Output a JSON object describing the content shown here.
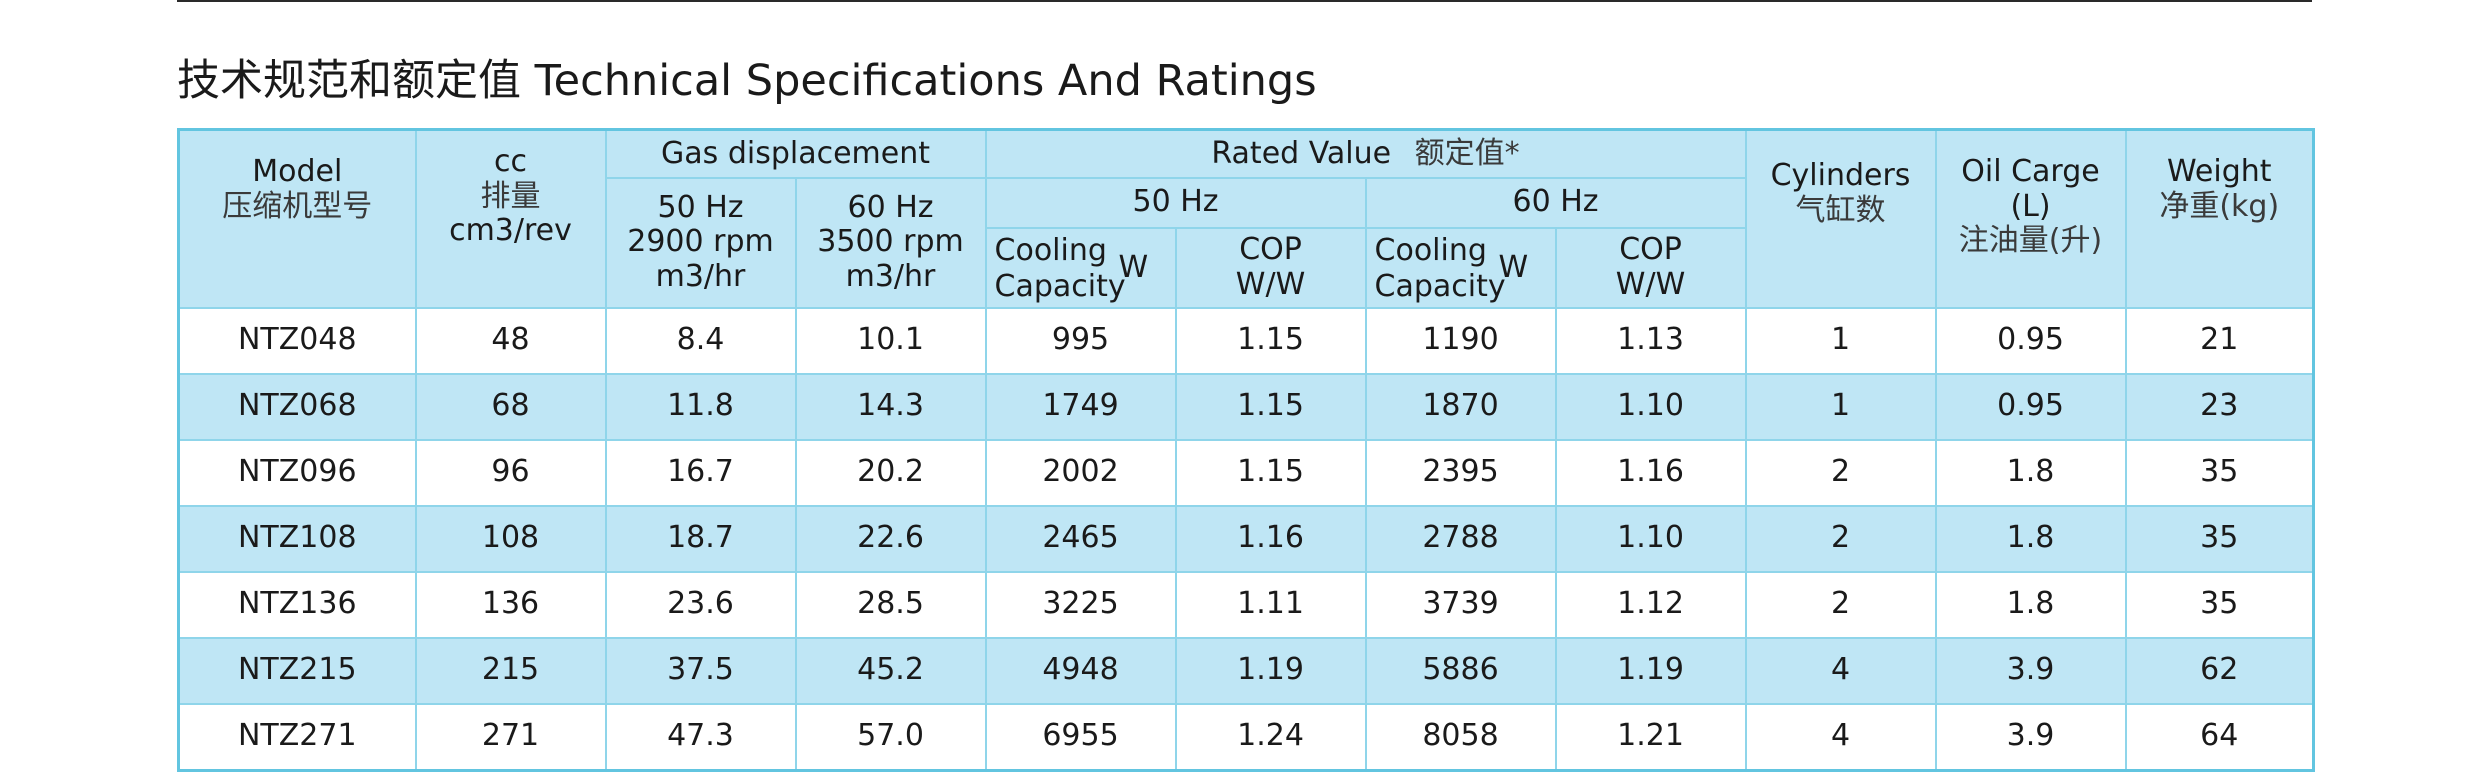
{
  "title": "技术规范和额定值 Technical Specifications And Ratings",
  "header": {
    "model_en": "Model",
    "model_zh": "压缩机型号",
    "cc_en": "cc",
    "cc_zh": "排量",
    "cc_unit": "cm3/rev",
    "gas_displacement": "Gas displacement",
    "rated_value_en": "Rated Value",
    "rated_value_zh": "额定值*",
    "hz50": "50 Hz",
    "hz60": "60 Hz",
    "rpm2900": "2900 rpm",
    "rpm3500": "3500 rpm",
    "m3hr": "m3/hr",
    "cooling": "Cooling",
    "capacity": "Capacity",
    "watt": "W",
    "cop": "COP",
    "ww": "W/W",
    "cylinders_en": "Cylinders",
    "cylinders_zh": "气缸数",
    "oil_en": "Oil Carge (L)",
    "oil_zh": "注油量(升)",
    "weight_en": "Weight",
    "weight_zh": "净重(kg)"
  },
  "rows": [
    {
      "model": "NTZ048",
      "cc": "48",
      "gas50": "8.4",
      "gas60": "10.1",
      "cap50": "995",
      "cop50": "1.15",
      "cap60": "1190",
      "cop60": "1.13",
      "cyl": "1",
      "oil": "0.95",
      "weight": "21"
    },
    {
      "model": "NTZ068",
      "cc": "68",
      "gas50": "11.8",
      "gas60": "14.3",
      "cap50": "1749",
      "cop50": "1.15",
      "cap60": "1870",
      "cop60": "1.10",
      "cyl": "1",
      "oil": "0.95",
      "weight": "23"
    },
    {
      "model": "NTZ096",
      "cc": "96",
      "gas50": "16.7",
      "gas60": "20.2",
      "cap50": "2002",
      "cop50": "1.15",
      "cap60": "2395",
      "cop60": "1.16",
      "cyl": "2",
      "oil": "1.8",
      "weight": "35"
    },
    {
      "model": "NTZ108",
      "cc": "108",
      "gas50": "18.7",
      "gas60": "22.6",
      "cap50": "2465",
      "cop50": "1.16",
      "cap60": "2788",
      "cop60": "1.10",
      "cyl": "2",
      "oil": "1.8",
      "weight": "35"
    },
    {
      "model": "NTZ136",
      "cc": "136",
      "gas50": "23.6",
      "gas60": "28.5",
      "cap50": "3225",
      "cop50": "1.11",
      "cap60": "3739",
      "cop60": "1.12",
      "cyl": "2",
      "oil": "1.8",
      "weight": "35"
    },
    {
      "model": "NTZ215",
      "cc": "215",
      "gas50": "37.5",
      "gas60": "45.2",
      "cap50": "4948",
      "cop50": "1.19",
      "cap60": "5886",
      "cop60": "1.19",
      "cyl": "4",
      "oil": "3.9",
      "weight": "62"
    },
    {
      "model": "NTZ271",
      "cc": "271",
      "gas50": "47.3",
      "gas60": "57.0",
      "cap50": "6955",
      "cop50": "1.24",
      "cap60": "8058",
      "cop60": "1.21",
      "cyl": "4",
      "oil": "3.9",
      "weight": "64"
    }
  ],
  "colors": {
    "header_bg": "#bfe6f5",
    "row_alt_bg": "#bfe6f5",
    "border": "#62c5e0"
  }
}
